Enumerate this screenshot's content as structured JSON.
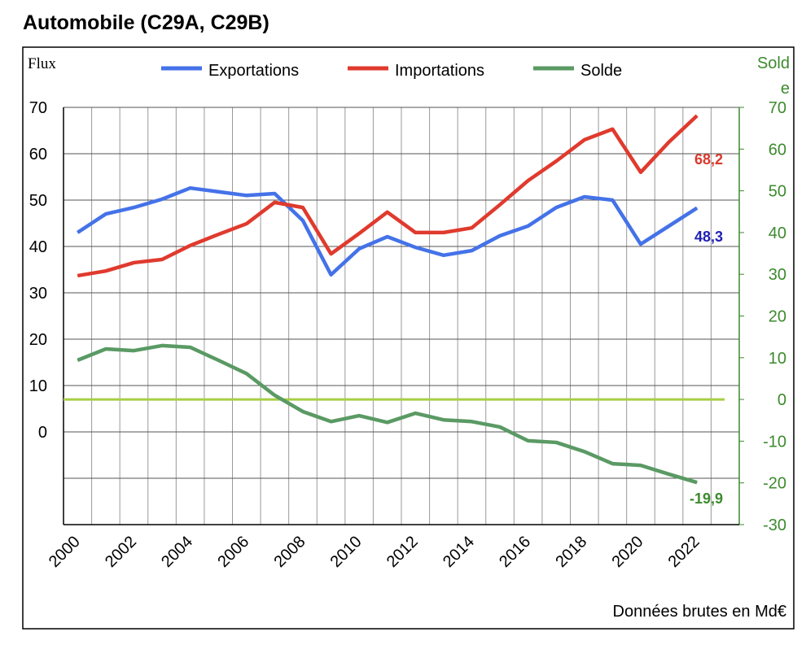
{
  "chart_data": {
    "type": "line",
    "title": "Automobile (C29A, C29B)",
    "ylabel": "Flux",
    "y2label": "Solde",
    "note": "Données brutes en Md€",
    "ylim": [
      -20,
      70
    ],
    "y2lim": [
      -30,
      70
    ],
    "yticks": [
      0,
      10,
      20,
      30,
      40,
      50,
      60,
      70
    ],
    "y2ticks": [
      -30,
      -20,
      -10,
      0,
      10,
      20,
      30,
      40,
      50,
      60,
      70
    ],
    "x": [
      2000,
      2001,
      2002,
      2003,
      2004,
      2005,
      2006,
      2007,
      2008,
      2009,
      2010,
      2011,
      2012,
      2013,
      2014,
      2015,
      2016,
      2017,
      2018,
      2019,
      2020,
      2021,
      2022
    ],
    "xticks": [
      "2000",
      "2002",
      "2004",
      "2006",
      "2008",
      "2010",
      "2012",
      "2014",
      "2016",
      "2018",
      "2020",
      "2022"
    ],
    "legend": "top",
    "series": [
      {
        "name": "Exportations",
        "axis": "left",
        "color": "#4472e8",
        "values": [
          43,
          47,
          48.4,
          50.2,
          52.6,
          51.8,
          51,
          51.4,
          45.6,
          33.9,
          39.5,
          42.1,
          39.8,
          38.1,
          39.1,
          42.3,
          44.4,
          48.4,
          50.7,
          50,
          40.5,
          44.4,
          48.3
        ],
        "end_label": "48,3",
        "label_color": "#1f1fb4"
      },
      {
        "name": "Importations",
        "axis": "left",
        "color": "#e03a2e",
        "values": [
          33.7,
          34.7,
          36.5,
          37.2,
          40.2,
          42.6,
          44.9,
          49.5,
          48.4,
          38.4,
          42.8,
          47.4,
          43,
          43,
          44,
          49,
          54.2,
          58.4,
          63,
          65.3,
          56,
          62.5,
          68.2
        ],
        "end_label": "68,2",
        "label_color": "#d93a2e"
      },
      {
        "name": "Solde",
        "axis": "right",
        "color": "#5a9a64",
        "values": [
          9.4,
          12.1,
          11.7,
          12.9,
          12.5,
          9.4,
          6.2,
          1,
          -2.9,
          -5.3,
          -3.9,
          -5.5,
          -3.3,
          -4.9,
          -5.3,
          -6.6,
          -9.9,
          -10.3,
          -12.5,
          -15.4,
          -15.8,
          -17.9,
          -19.9
        ],
        "end_label": "-19,9",
        "label_color": "#3d8a2e"
      }
    ],
    "zero_line_color": "#a6cf45",
    "right_axis_color": "#3d8a2e"
  }
}
